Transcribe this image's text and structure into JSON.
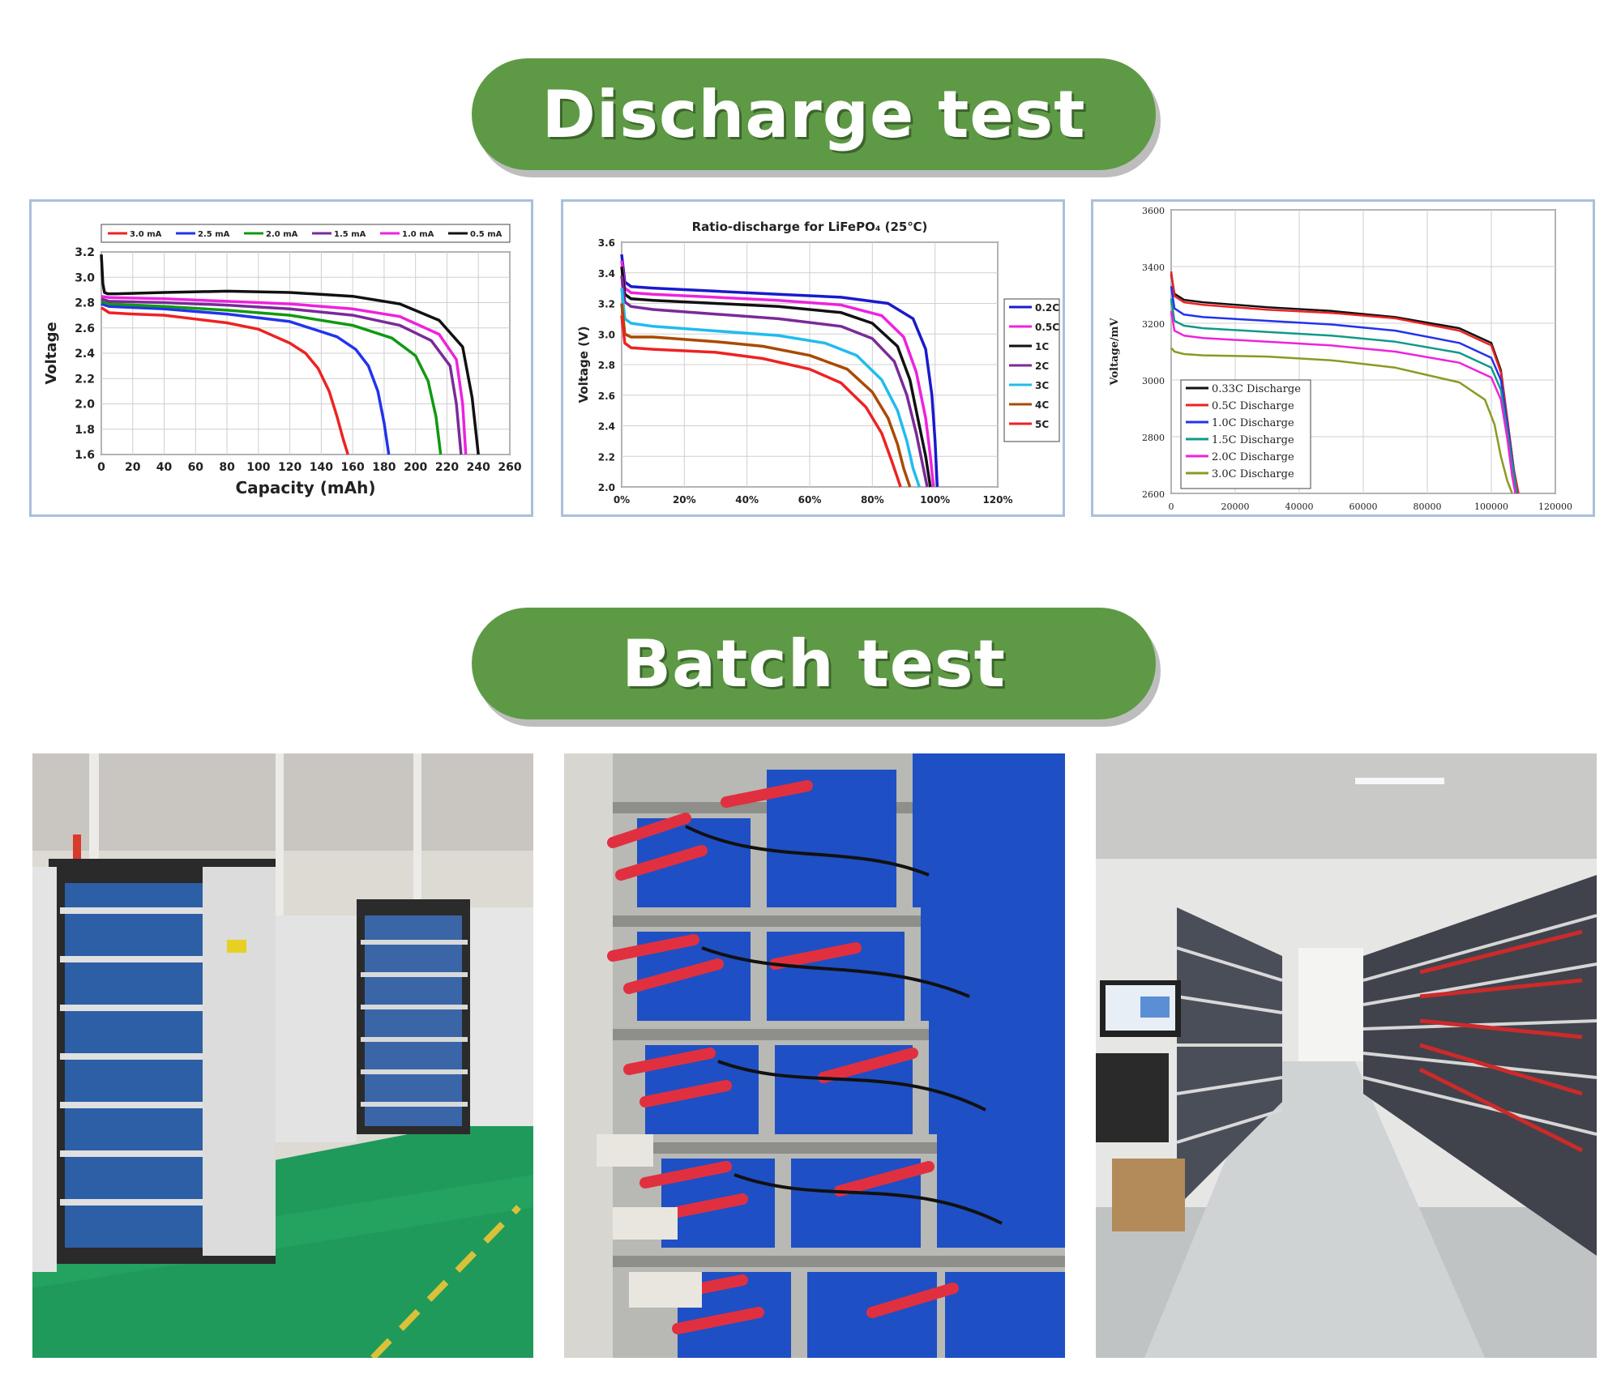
{
  "sections": {
    "discharge_title": "Discharge test",
    "batch_title": "Batch test"
  },
  "colors": {
    "pill": "#5e9a45",
    "chart_border": "#a9bfdc"
  },
  "chart_data": [
    {
      "type": "line",
      "xlabel": "Capacity (mAh)",
      "ylabel": "Voltage",
      "xlim": [
        0,
        260
      ],
      "ylim": [
        1.6,
        3.2
      ],
      "xticks": [
        "0",
        "20",
        "40",
        "60",
        "80",
        "100",
        "120",
        "140",
        "160",
        "180",
        "200",
        "220",
        "240",
        "260"
      ],
      "yticks": [
        "1.6",
        "1.8",
        "2.0",
        "2.2",
        "2.4",
        "2.6",
        "2.8",
        "3.0",
        "3.2"
      ],
      "grid": true,
      "legend_position": "top",
      "series": [
        {
          "name": "3.0 mA",
          "color": "#ee2222",
          "x": [
            0,
            5,
            20,
            40,
            60,
            80,
            100,
            120,
            130,
            138,
            145,
            150,
            154,
            157
          ],
          "y": [
            2.76,
            2.72,
            2.71,
            2.7,
            2.67,
            2.64,
            2.59,
            2.48,
            2.4,
            2.28,
            2.1,
            1.9,
            1.72,
            1.6
          ]
        },
        {
          "name": "2.5 mA",
          "color": "#2233ee",
          "x": [
            0,
            5,
            40,
            80,
            120,
            150,
            162,
            170,
            176,
            180,
            183
          ],
          "y": [
            2.79,
            2.77,
            2.75,
            2.71,
            2.65,
            2.53,
            2.43,
            2.3,
            2.1,
            1.85,
            1.6
          ]
        },
        {
          "name": "2.0 mA",
          "color": "#119911",
          "x": [
            0,
            5,
            40,
            80,
            120,
            160,
            185,
            200,
            208,
            213,
            216
          ],
          "y": [
            2.81,
            2.79,
            2.77,
            2.74,
            2.7,
            2.62,
            2.52,
            2.38,
            2.18,
            1.9,
            1.6
          ]
        },
        {
          "name": "1.5 mA",
          "color": "#7a2a99",
          "x": [
            0,
            5,
            40,
            80,
            120,
            160,
            190,
            210,
            222,
            226,
            229
          ],
          "y": [
            2.83,
            2.81,
            2.8,
            2.78,
            2.75,
            2.7,
            2.62,
            2.5,
            2.3,
            2.0,
            1.6
          ]
        },
        {
          "name": "1.0 mA",
          "color": "#ee22dd",
          "x": [
            0,
            5,
            40,
            80,
            120,
            160,
            190,
            215,
            226,
            230,
            232
          ],
          "y": [
            2.85,
            2.84,
            2.83,
            2.81,
            2.79,
            2.75,
            2.69,
            2.55,
            2.35,
            2.0,
            1.6
          ]
        },
        {
          "name": "0.5 mA",
          "color": "#111111",
          "x": [
            0,
            1,
            2,
            4,
            10,
            40,
            80,
            120,
            160,
            190,
            215,
            230,
            236,
            240
          ],
          "y": [
            3.18,
            2.95,
            2.88,
            2.87,
            2.87,
            2.88,
            2.89,
            2.88,
            2.85,
            2.79,
            2.66,
            2.45,
            2.05,
            1.6
          ]
        }
      ]
    },
    {
      "type": "line",
      "title": "Ratio-discharge for LiFePO₄ (25℃)",
      "xlabel": "",
      "ylabel": "Voltage (V)",
      "xlim": [
        0,
        120
      ],
      "ylim": [
        2.0,
        3.6
      ],
      "xticks": [
        "0%",
        "20%",
        "40%",
        "60%",
        "80%",
        "100%",
        "120%"
      ],
      "yticks": [
        "2.0",
        "2.2",
        "2.4",
        "2.6",
        "2.8",
        "3.0",
        "3.2",
        "3.4",
        "3.6"
      ],
      "grid": true,
      "legend_position": "right",
      "series": [
        {
          "name": "0.2C",
          "color": "#1a1acc",
          "x": [
            0,
            1,
            3,
            10,
            30,
            50,
            70,
            85,
            93,
            97,
            99,
            100,
            100.7
          ],
          "y": [
            3.52,
            3.34,
            3.31,
            3.3,
            3.28,
            3.26,
            3.24,
            3.2,
            3.1,
            2.9,
            2.6,
            2.3,
            2.0
          ]
        },
        {
          "name": "0.5C",
          "color": "#ee22dd",
          "x": [
            0,
            1,
            3,
            10,
            30,
            50,
            70,
            83,
            90,
            94,
            97,
            98.5,
            99.5
          ],
          "y": [
            3.48,
            3.3,
            3.27,
            3.26,
            3.24,
            3.22,
            3.19,
            3.12,
            2.98,
            2.75,
            2.45,
            2.2,
            2.0
          ]
        },
        {
          "name": "1C",
          "color": "#111111",
          "x": [
            0,
            1,
            3,
            10,
            30,
            50,
            70,
            80,
            88,
            92,
            95,
            97,
            98.5
          ],
          "y": [
            3.44,
            3.26,
            3.23,
            3.22,
            3.2,
            3.18,
            3.14,
            3.07,
            2.92,
            2.7,
            2.4,
            2.2,
            2.0
          ]
        },
        {
          "name": "2C",
          "color": "#7a2a99",
          "x": [
            0,
            1,
            3,
            10,
            30,
            50,
            70,
            80,
            87,
            91,
            94,
            96,
            97.5
          ],
          "y": [
            3.38,
            3.21,
            3.18,
            3.16,
            3.13,
            3.1,
            3.05,
            2.97,
            2.82,
            2.6,
            2.35,
            2.15,
            2.0
          ]
        },
        {
          "name": "3C",
          "color": "#22bbee",
          "x": [
            0,
            1,
            3,
            10,
            30,
            50,
            65,
            75,
            83,
            88,
            91,
            93,
            95
          ],
          "y": [
            3.3,
            3.1,
            3.07,
            3.05,
            3.02,
            2.99,
            2.94,
            2.86,
            2.7,
            2.5,
            2.3,
            2.12,
            2.0
          ]
        },
        {
          "name": "4C",
          "color": "#aa4a00",
          "x": [
            0,
            1,
            3,
            10,
            30,
            45,
            60,
            72,
            80,
            85,
            88,
            90,
            92
          ],
          "y": [
            3.2,
            3.0,
            2.98,
            2.98,
            2.95,
            2.92,
            2.86,
            2.77,
            2.62,
            2.45,
            2.28,
            2.12,
            2.0
          ]
        },
        {
          "name": "5C",
          "color": "#ee2222",
          "x": [
            0,
            1,
            3,
            10,
            30,
            45,
            60,
            70,
            78,
            83,
            86,
            88,
            89
          ],
          "y": [
            3.12,
            2.94,
            2.91,
            2.9,
            2.88,
            2.84,
            2.77,
            2.68,
            2.52,
            2.35,
            2.18,
            2.06,
            2.0
          ]
        }
      ]
    },
    {
      "type": "line",
      "xlabel": "",
      "ylabel": "Voltage/mV",
      "xlim": [
        0,
        120000
      ],
      "ylim": [
        2500,
        3650
      ],
      "xticks": [
        "0",
        "20000",
        "40000",
        "60000",
        "80000",
        "100000",
        "120000"
      ],
      "yticks": [
        "2600",
        "2800",
        "3000",
        "3200",
        "3400",
        "3600"
      ],
      "grid": true,
      "legend_position": "bottom-left",
      "series": [
        {
          "name": "0.33C Discharge",
          "color": "#111111",
          "x": [
            0,
            1000,
            4000,
            10000,
            30000,
            50000,
            70000,
            90000,
            100000,
            103000,
            105000,
            107000,
            108000
          ],
          "y": [
            3390,
            3310,
            3285,
            3275,
            3255,
            3240,
            3215,
            3170,
            3110,
            3000,
            2800,
            2600,
            2500
          ]
        },
        {
          "name": "0.5C  Discharge",
          "color": "#ee2222",
          "x": [
            0,
            1000,
            4000,
            10000,
            30000,
            50000,
            70000,
            90000,
            100000,
            103000,
            105000,
            107000,
            108500
          ],
          "y": [
            3400,
            3300,
            3275,
            3265,
            3245,
            3232,
            3210,
            3160,
            3100,
            2990,
            2800,
            2600,
            2500
          ]
        },
        {
          "name": "1.0C  Discharge",
          "color": "#2233ee",
          "x": [
            0,
            1000,
            4000,
            10000,
            30000,
            50000,
            70000,
            90000,
            100000,
            103000,
            105000,
            107000,
            108000
          ],
          "y": [
            3340,
            3250,
            3225,
            3215,
            3200,
            3185,
            3160,
            3110,
            3050,
            2960,
            2780,
            2590,
            2500
          ]
        },
        {
          "name": "1.5C  Discharge",
          "color": "#119988",
          "x": [
            0,
            1000,
            4000,
            10000,
            30000,
            50000,
            70000,
            90000,
            100000,
            103000,
            105000,
            107000,
            108000
          ],
          "y": [
            3290,
            3200,
            3180,
            3170,
            3155,
            3140,
            3115,
            3070,
            3010,
            2920,
            2750,
            2580,
            2500
          ]
        },
        {
          "name": "2.0C  Discharge",
          "color": "#ee22dd",
          "x": [
            0,
            1000,
            4000,
            10000,
            30000,
            50000,
            70000,
            90000,
            100000,
            103000,
            105000,
            106500,
            107500
          ],
          "y": [
            3240,
            3160,
            3140,
            3130,
            3115,
            3100,
            3075,
            3030,
            2970,
            2880,
            2720,
            2570,
            2500
          ]
        },
        {
          "name": "3.0C  Discharge",
          "color": "#8a9a22",
          "x": [
            0,
            1000,
            4000,
            10000,
            30000,
            50000,
            70000,
            90000,
            98000,
            101000,
            103000,
            105000,
            106500
          ],
          "y": [
            3090,
            3075,
            3065,
            3060,
            3055,
            3040,
            3010,
            2950,
            2880,
            2780,
            2650,
            2550,
            2500
          ]
        }
      ]
    }
  ],
  "photos": [
    {
      "name": "battery-cabinet-room"
    },
    {
      "name": "cell-testing-rack"
    },
    {
      "name": "aging-test-aisle"
    }
  ]
}
